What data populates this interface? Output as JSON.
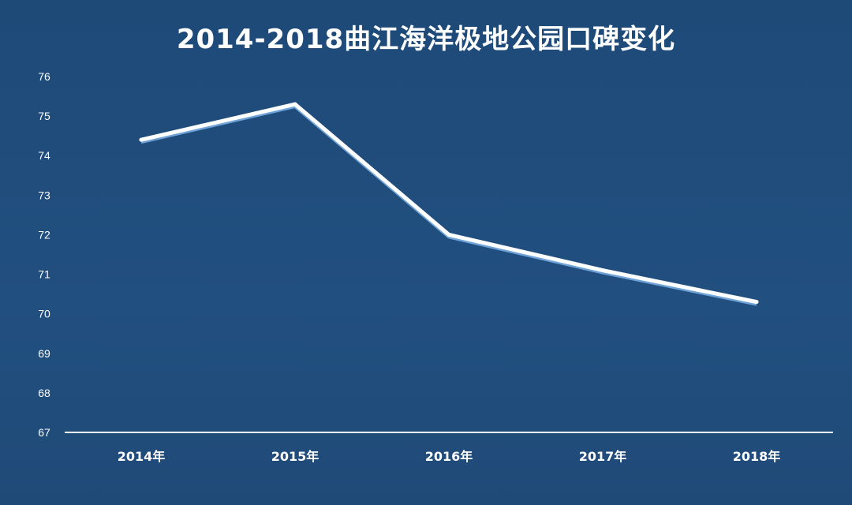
{
  "chart_data": {
    "type": "line",
    "title": "2014-2018曲江海洋极地公园口碑变化",
    "categories": [
      "2014年",
      "2015年",
      "2016年",
      "2017年",
      "2018年"
    ],
    "values": [
      74.4,
      75.3,
      72.0,
      71.1,
      70.3
    ],
    "ylim": [
      67,
      76
    ],
    "yticks": [
      67,
      68,
      69,
      70,
      71,
      72,
      73,
      74,
      75,
      76
    ],
    "grid": false,
    "drop_lines": true,
    "colors": {
      "line": "#ffffff",
      "shadow": "#6fa3d8",
      "background": "#1f4b7b",
      "text": "#ffffff"
    }
  }
}
